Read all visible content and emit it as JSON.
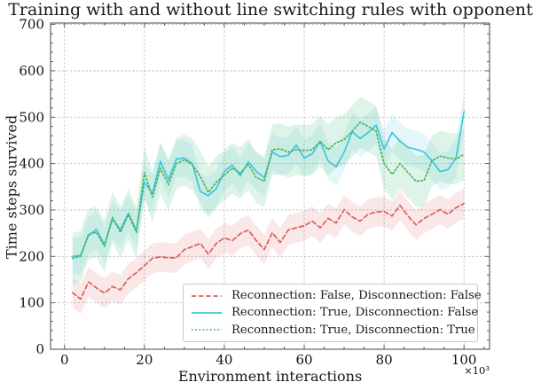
{
  "chart_data": {
    "type": "line",
    "title": "Training with and without line switching rules with opponent",
    "xlabel": "Environment interactions",
    "ylabel": "Time steps survived",
    "x_offset_label": "×10³",
    "xlim": [
      -3.5,
      106.4
    ],
    "ylim": [
      0,
      703
    ],
    "x_ticks": [
      0,
      20,
      40,
      60,
      80,
      100
    ],
    "y_ticks": [
      0,
      100,
      200,
      300,
      400,
      500,
      600,
      700
    ],
    "x_minor_step": 5,
    "y_minor_step": 20,
    "grid": true,
    "grid_color": "#b5b5b5",
    "spine_color": "#555555",
    "legend_position": "lower center",
    "x": [
      2,
      4,
      6,
      8,
      10,
      12,
      14,
      16,
      18,
      20,
      22,
      24,
      26,
      28,
      30,
      32,
      34,
      36,
      38,
      40,
      42,
      44,
      46,
      48,
      50,
      52,
      54,
      56,
      58,
      60,
      62,
      64,
      66,
      68,
      70,
      72,
      74,
      76,
      78,
      80,
      82,
      84,
      86,
      88,
      90,
      92,
      94,
      96,
      98,
      100
    ],
    "series": [
      {
        "name": "Reconnection: False, Disconnection: False",
        "color": "#dc5e5e",
        "band_color": "rgba(220,94,94,0.14)",
        "line_style": "dashed",
        "band_halfwidth": 32,
        "values": [
          122,
          108,
          145,
          132,
          121,
          135,
          128,
          152,
          165,
          180,
          196,
          199,
          197,
          197,
          215,
          221,
          228,
          205,
          228,
          240,
          234,
          249,
          257,
          234,
          215,
          251,
          230,
          257,
          262,
          266,
          276,
          262,
          282,
          272,
          301,
          285,
          276,
          291,
          296,
          297,
          287,
          310,
          287,
          268,
          282,
          291,
          301,
          291,
          305,
          314
        ]
      },
      {
        "name": "Reconnection: True, Disconnection: False",
        "color": "#41c4e0",
        "band_color": "rgba(65,196,224,0.14)",
        "line_style": "solid",
        "band_halfwidth": 40,
        "values": [
          200,
          202,
          245,
          258,
          225,
          280,
          258,
          293,
          256,
          360,
          336,
          405,
          365,
          410,
          412,
          400,
          340,
          331,
          346,
          383,
          397,
          374,
          404,
          383,
          370,
          425,
          415,
          418,
          440,
          412,
          421,
          448,
          406,
          393,
          425,
          469,
          454,
          467,
          483,
          431,
          467,
          448,
          435,
          431,
          425,
          406,
          383,
          387,
          412,
          512
        ]
      },
      {
        "name": "Reconnection: True, Disconnection: True",
        "color": "#4bb45d",
        "band_color": "rgba(96,200,140,0.20)",
        "line_style": "dotted",
        "band_halfwidth": 55,
        "values": [
          196,
          200,
          248,
          252,
          222,
          284,
          252,
          290,
          252,
          381,
          328,
          390,
          355,
          400,
          408,
          398,
          372,
          338,
          360,
          375,
          390,
          380,
          398,
          370,
          362,
          430,
          432,
          425,
          430,
          428,
          430,
          448,
          430,
          445,
          452,
          470,
          489,
          480,
          470,
          400,
          377,
          400,
          381,
          362,
          364,
          406,
          416,
          412,
          410,
          420
        ]
      }
    ]
  }
}
